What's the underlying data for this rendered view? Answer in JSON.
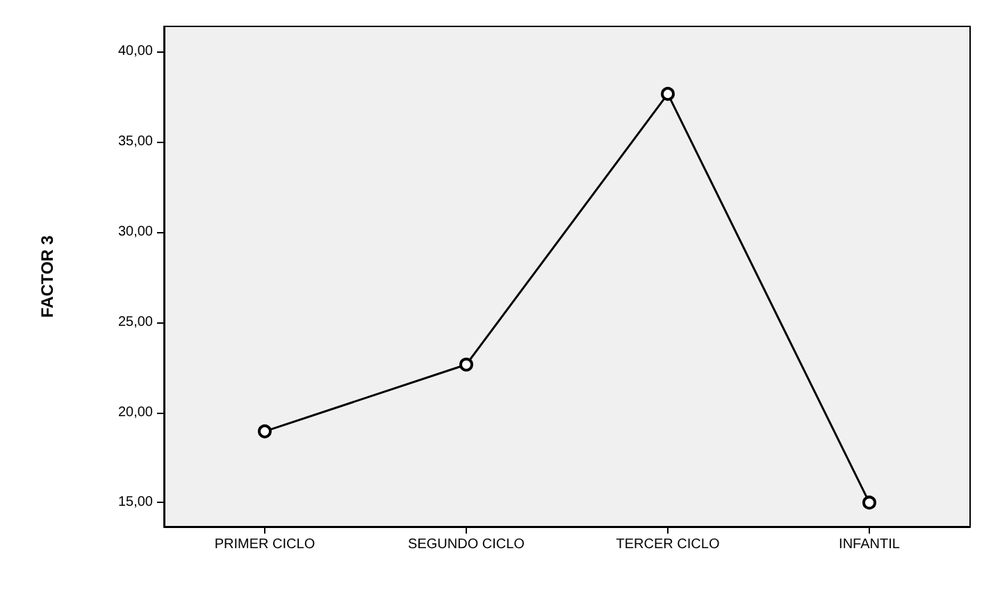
{
  "chart_data": {
    "type": "line",
    "ylabel": "FACTOR 3",
    "categories": [
      "PRIMER CICLO",
      "SEGUNDO CICLO",
      "TERCER CICLO",
      "INFANTIL"
    ],
    "series": [
      {
        "color": "#000000",
        "values": [
          18.95,
          22.65,
          37.65,
          15.0
        ]
      }
    ],
    "ylim": [
      13.67,
      41.39
    ],
    "yticks": [
      {
        "value": 15,
        "label": "15,00"
      },
      {
        "value": 20,
        "label": "20,00"
      },
      {
        "value": 25,
        "label": "25,00"
      },
      {
        "value": 30,
        "label": "30,00"
      },
      {
        "value": 35,
        "label": "35,00"
      },
      {
        "value": 40,
        "label": "40,00"
      }
    ],
    "grid": false,
    "marker": "circle",
    "line_style": "solid"
  }
}
